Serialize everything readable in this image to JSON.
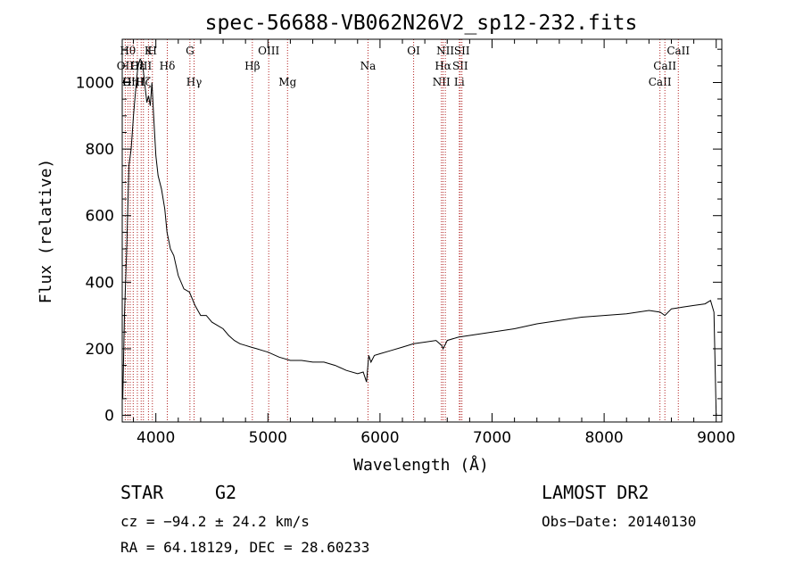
{
  "chart_data": {
    "type": "line",
    "title": "spec-56688-VB062N26V2_sp12-232.fits",
    "xlabel": "Wavelength (Å)",
    "ylabel": "Flux (relative)",
    "xlim": [
      3700,
      9050
    ],
    "ylim": [
      -20,
      1130
    ],
    "x_ticks": [
      4000,
      5000,
      6000,
      7000,
      8000,
      9000
    ],
    "y_ticks": [
      0,
      200,
      400,
      600,
      800,
      1000
    ],
    "grid": false,
    "series": [
      {
        "color": "#000000",
        "x": [
          3705,
          3720,
          3740,
          3760,
          3780,
          3800,
          3820,
          3840,
          3860,
          3880,
          3900,
          3920,
          3935,
          3950,
          3965,
          3980,
          4000,
          4020,
          4050,
          4080,
          4100,
          4130,
          4160,
          4200,
          4250,
          4300,
          4350,
          4400,
          4450,
          4500,
          4550,
          4600,
          4650,
          4700,
          4750,
          4800,
          4850,
          4900,
          4950,
          5000,
          5100,
          5200,
          5300,
          5400,
          5500,
          5600,
          5700,
          5800,
          5850,
          5880,
          5900,
          5920,
          5950,
          6000,
          6100,
          6200,
          6300,
          6400,
          6500,
          6550,
          6563,
          6600,
          6700,
          6800,
          6900,
          7000,
          7200,
          7400,
          7600,
          7800,
          8000,
          8200,
          8400,
          8500,
          8542,
          8600,
          8700,
          8800,
          8900,
          8950,
          8980,
          9000
        ],
        "y": [
          50,
          300,
          500,
          750,
          800,
          900,
          980,
          1050,
          1070,
          1060,
          1000,
          940,
          960,
          930,
          1000,
          900,
          780,
          720,
          680,
          620,
          550,
          500,
          480,
          420,
          380,
          370,
          330,
          300,
          300,
          280,
          270,
          260,
          240,
          225,
          215,
          210,
          205,
          200,
          195,
          190,
          175,
          165,
          165,
          160,
          160,
          150,
          135,
          125,
          130,
          100,
          180,
          160,
          180,
          185,
          195,
          205,
          215,
          220,
          225,
          210,
          200,
          225,
          235,
          240,
          245,
          250,
          260,
          275,
          285,
          295,
          300,
          305,
          315,
          310,
          300,
          320,
          325,
          330,
          335,
          345,
          310,
          0
        ]
      }
    ],
    "line_markers": [
      {
        "x": 3727,
        "label": "OII",
        "row": 1
      },
      {
        "x": 3750,
        "label": "Hθ",
        "row": 0
      },
      {
        "x": 3771,
        "label": "Hη",
        "row": 2
      },
      {
        "x": 3798,
        "label": "OIII",
        "row": 2
      },
      {
        "x": 3835,
        "label": "Hε",
        "row": 1
      },
      {
        "x": 3869,
        "label": "OIII",
        "row": 1
      },
      {
        "x": 3889,
        "label": "Hζ",
        "row": 2
      },
      {
        "x": 3934,
        "label": "K",
        "row": 0
      },
      {
        "x": 3969,
        "label": "H",
        "row": 0
      },
      {
        "x": 4102,
        "label": "Hδ",
        "row": 1
      },
      {
        "x": 4304,
        "label": "G",
        "row": 0
      },
      {
        "x": 4341,
        "label": "Hγ",
        "row": 2
      },
      {
        "x": 4861,
        "label": "Hβ",
        "row": 1
      },
      {
        "x": 5007,
        "label": "OIII",
        "row": 0
      },
      {
        "x": 5175,
        "label": "Mg",
        "row": 2
      },
      {
        "x": 5893,
        "label": "Na",
        "row": 1
      },
      {
        "x": 6300,
        "label": "OI",
        "row": 0
      },
      {
        "x": 6548,
        "label": "NII",
        "row": 2
      },
      {
        "x": 6563,
        "label": "Hα",
        "row": 1
      },
      {
        "x": 6583,
        "label": "NII",
        "row": 0
      },
      {
        "x": 6708,
        "label": "Li",
        "row": 2
      },
      {
        "x": 6716,
        "label": "SII",
        "row": 1
      },
      {
        "x": 6731,
        "label": "SII",
        "row": 0
      },
      {
        "x": 8498,
        "label": "CaII",
        "row": 2
      },
      {
        "x": 8542,
        "label": "CaII",
        "row": 1
      },
      {
        "x": 8662,
        "label": "CaII",
        "row": 0
      }
    ]
  },
  "info": {
    "class_label": "STAR",
    "subclass_label": "G2",
    "survey": "LAMOST DR2",
    "cz": "cz = −94.2 ± 24.2 km/s",
    "obs_date": "Obs−Date: 20140130",
    "coords": "RA =  64.18129, DEC =  28.60233"
  }
}
